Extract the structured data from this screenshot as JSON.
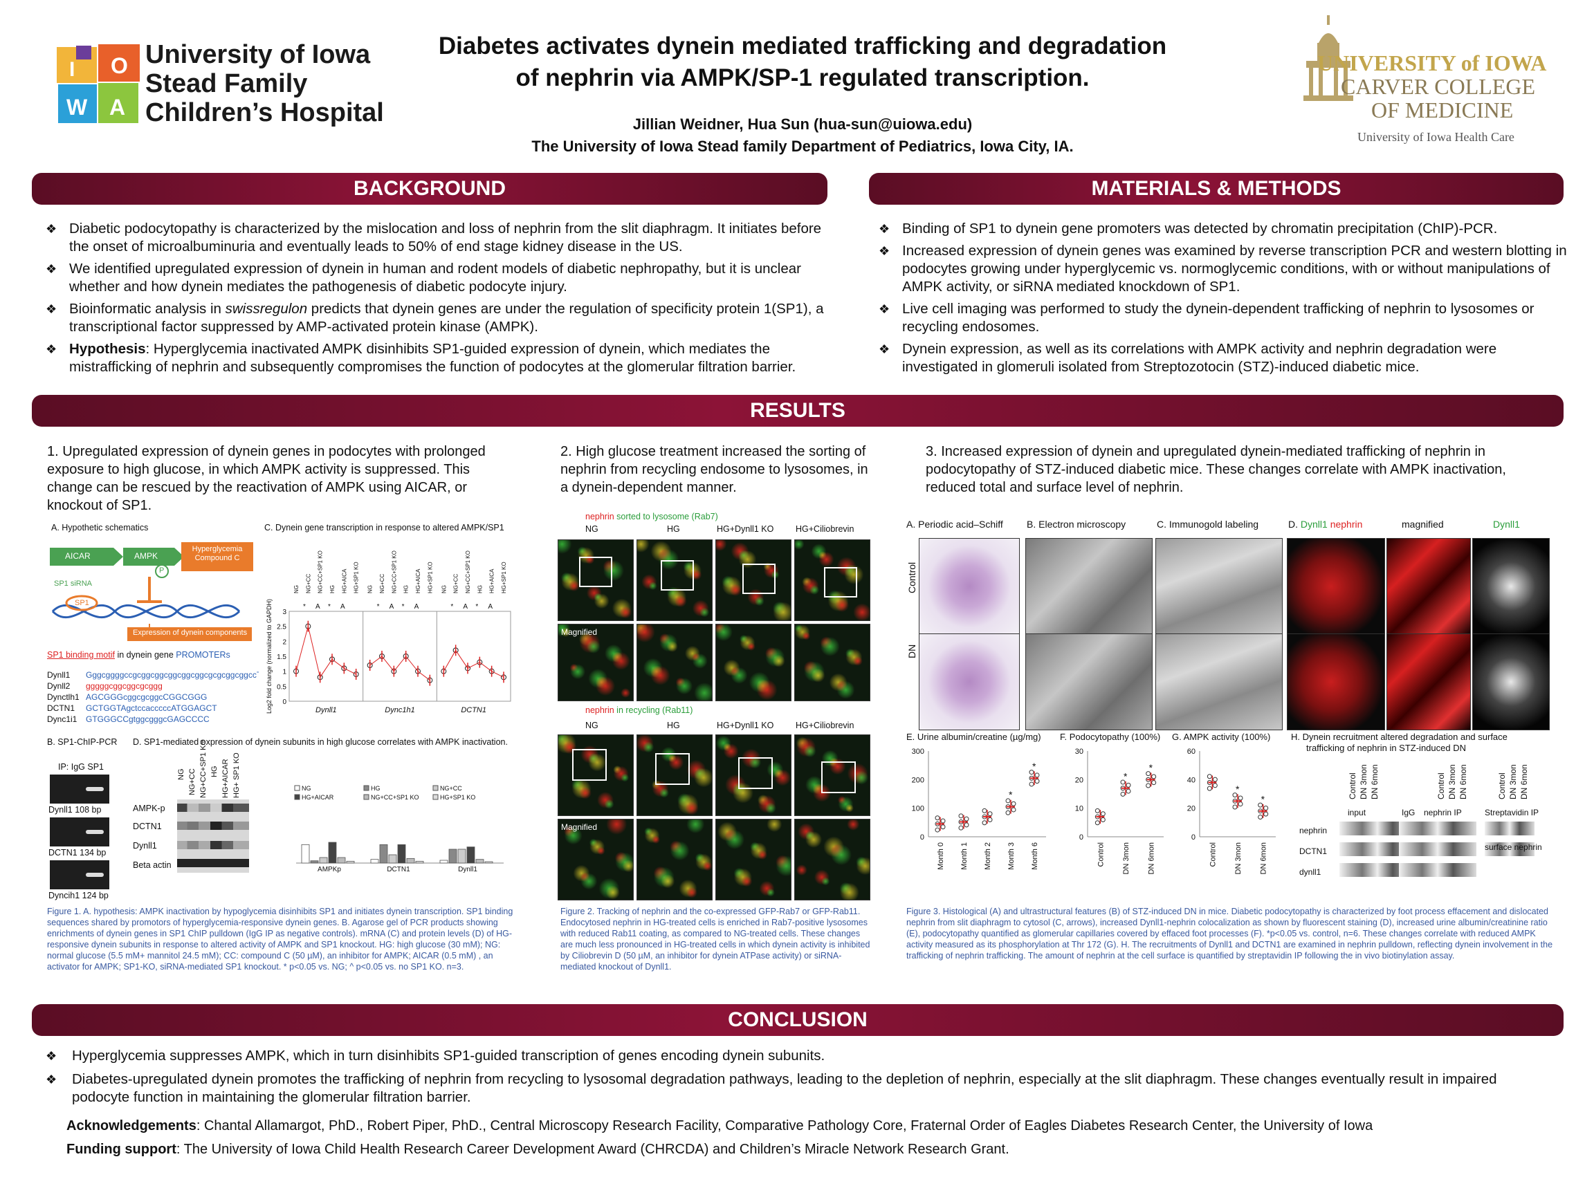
{
  "header": {
    "left_logo_lines": [
      "University of Iowa",
      "Stead Family",
      "Children’s Hospital"
    ],
    "title_line1": "Diabetes activates dynein mediated trafficking and degradation",
    "title_line2": "of nephrin via AMPK/SP-1 regulated transcription.",
    "authors": "Jillian Weidner, Hua Sun (hua-sun@uiowa.edu)",
    "affiliation": "The University of Iowa Stead family Department of Pediatrics, Iowa City, IA.",
    "right_logo_line1": "UNIVERSITY of IOWA",
    "right_logo_line2": "CARVER COLLEGE",
    "right_logo_line3": "OF MEDICINE",
    "right_logo_line4": "University of Iowa Health Care"
  },
  "background": {
    "heading": "BACKGROUND",
    "bullets": [
      "Diabetic podocytopathy is characterized by the mislocation and loss of nephrin from the slit diaphragm.  It initiates before the onset of microalbuminuria and eventually leads to 50% of end stage kidney disease in the US.",
      "We identified upregulated expression of dynein in human and rodent models of diabetic nephropathy, but it is unclear whether and how dynein mediates the pathogenesis of diabetic podocyte injury.",
      "Bioinformatic analysis in swissregulon predicts that dynein genes are under the regulation of specificity protein 1(SP1), a transcriptional factor suppressed by AMP-activated protein kinase (AMPK).",
      "Hyperglycemia inactivated AMPK disinhibits SP1-guided expression of dynein, which mediates the mistrafficking of nephrin and subsequently compromises the function of podocytes at the glomerular filtration barrier."
    ],
    "bullet4_bold": "Hypothesis",
    "bullet3_pre": "Bioinformatic analysis in ",
    "bullet3_italic": "swissregulon",
    "bullet3_post": " predicts that dynein genes are under the regulation of specificity protein 1(SP1), a transcriptional factor suppressed by AMP-activated protein kinase (AMPK).",
    "bullet4_post": ": Hyperglycemia inactivated AMPK disinhibits SP1-guided expression of dynein, which mediates the mistrafficking of nephrin and subsequently compromises the function of podocytes at the glomerular filtration barrier."
  },
  "methods": {
    "heading": "MATERIALS & METHODS",
    "bullets": [
      "Binding of SP1 to dynein gene promoters was detected by chromatin precipitation (ChIP)-PCR.",
      "Increased expression of dynein genes was examined by reverse transcription PCR and western blotting in podocytes growing under hyperglycemic vs. normoglycemic conditions, with or without manipulations of AMPK activity, or siRNA mediated knockdown of SP1.",
      "Live cell imaging was performed to study the dynein-dependent trafficking of nephrin to lysosomes or recycling endosomes.",
      "Dynein expression, as well as its correlations with AMPK activity and nephrin degradation were investigated in glomeruli isolated from Streptozotocin (STZ)-induced diabetic mice."
    ]
  },
  "results": {
    "heading": "RESULTS",
    "s1": "1.     Upregulated expression of dynein genes in podocytes with prolonged exposure to high glucose, in which AMPK activity is suppressed. This change can be rescued by the reactivation of AMPK using AICAR, or knockout of SP1.",
    "s2": "2.     High glucose treatment increased the sorting of nephrin from recycling endosome to lysosomes, in a dynein-dependent manner.",
    "s3": "3.     Increased expression of dynein and upregulated dynein-mediated trafficking of nephrin in podocytopathy of STZ-induced diabetic mice. These changes correlate with AMPK inactivation, reduced total and surface level of nephrin.",
    "fig1": {
      "A": "A. Hypothetic schematics",
      "C": "C. Dynein gene transcription in response to altered AMPK/SP1",
      "aicar": "AICAR",
      "ampk": "AMPK",
      "hyper": "Hyperglycemia Compound C",
      "sp1sirna": "SP1 siRNA",
      "sp1": "SP1",
      "expr": "Expression of dynein components",
      "p": "P",
      "motif_red": "SP1 binding motif",
      "motif_mid": " in dynein gene ",
      "motif_blue": "PROMOTERs",
      "genes": [
        "Dynll1",
        "Dynll2",
        "Dynctlh1",
        "DCTN1",
        "Dync1i1"
      ],
      "seqs": [
        "GggcggggccgcggcggcggcggcggcgcgcggcggccT",
        "gggggcggcggcgcggg",
        "AGCGGGcggcgcggcCGGCGGG",
        "GCTGGTAgctccacccccATGGAGCT",
        "GTGGGCCgtggcgggcGAGCCCC"
      ],
      "ylabel": "Log2 fold change (normalized to GAPDH)",
      "c_groups": [
        "Dynll1",
        "Dync1h1",
        "DCTN1"
      ],
      "c_conds": [
        "NG",
        "NG+CC",
        "NG+CC+SP1 KO",
        "HG",
        "HG+AICA",
        "HG+SP1 KO"
      ],
      "c_sig": [
        "*",
        "A",
        "*",
        "A"
      ],
      "B": "B. SP1-ChIP-PCR",
      "D": "D.   SP1-mediated expression of dynein subunits in high glucose correlates with AMPK inactivation.",
      "ip": "IP: IgG SP1",
      "bands": [
        "Dynll1   108 bp",
        "DCTN1   134 bp",
        "Dyncih1  124 bp"
      ],
      "wb_lanes": [
        "NG",
        "NG+CC",
        "NG+CC+SP1 KO",
        "HG",
        "HG+AICAR",
        "HG+ SP1 KO"
      ],
      "wb_rows": [
        "AMPK-p",
        "DCTN1",
        "Dynll1",
        "Beta actin"
      ],
      "d_legend": [
        "NG",
        "NG+CC",
        "NG+CC+SP1 KO",
        "HG",
        "HG+AICAR",
        "HG+SP1 KO"
      ],
      "d_groups": [
        "AMPKp",
        "DCTN1",
        "Dynll1"
      ],
      "caption": "Figure 1. A. hypothesis: AMPK inactivation by hypoglycemia disinhibits SP1 and initiates dynein transcription. SP1 binding sequences shared by promotors of hyperglycemia-responsive dynein genes. B. Agarose gel of PCR products showing enrichments of dynein genes in SP1 ChIP pulldown (IgG IP as negative controls). mRNA (C) and protein levels (D) of HG-responsive dynein subunits in response to altered activity of AMPK and SP1 knockout. HG: high glucose (30 mM); NG: normal glucose (5.5 mM+ mannitol 24.5 mM); CC: compound C (50 µM), an inhibitor for AMPK; AICAR (0.5 mM) , an activator for AMPK; SP1-KO, siRNA-mediated SP1 knockout.  * p<0.05 vs. NG; ^ p<0.05 vs. no SP1 KO. n=3."
    },
    "fig2": {
      "top_red": "nephrin",
      "top_green": " sorted to lysosome (Rab7)",
      "bot_red": "nephrin",
      "bot_green": " in recycling (Rab11)",
      "cols": [
        "NG",
        "HG",
        "HG+Dynll1 KO",
        "HG+Ciliobrevin"
      ],
      "magnified": "Magnified",
      "caption": "Figure 2.  Tracking of nephrin and the co-expressed GFP-Rab7 or GFP-Rab11. Endocytosed nephrin in HG-treated cells is enriched in Rab7-positive lysosomes with reduced Rab11 coating, as compared to NG-treated cells. These changes are much less pronounced in HG-treated cells in which dynein activity is inhibited by Ciliobrevin D (50 µM, an inhibitor for dynein ATPase activity) or siRNA-mediated knockout of Dynll1."
    },
    "fig3": {
      "heads": [
        "A.   Periodic acid–Schiff",
        "B.   Electron microscopy",
        "C.   Immunogold labeling",
        "D.",
        "Dynll1",
        "nephrin",
        "magnified",
        "Dynll1"
      ],
      "rows": [
        "Control",
        "DN"
      ],
      "nephrin_lbl": "nephrin",
      "E": "E.  Urine albumin/creatine (µg/mg)",
      "F": "F.  Podocytopathy (100%)",
      "G": "G.  AMPK activity (100%)",
      "H1": "H.  Dynein recruitment altered degradation and surface",
      "H2": "trafficking of nephrin in STZ-induced DN",
      "h_lanes": [
        "Control",
        "DN 3mon",
        "DN 6mon"
      ],
      "h_groups": [
        "input",
        "IgG",
        "nephrin IP",
        "Streptavidin IP"
      ],
      "h_rows": [
        "nephrin",
        "DCTN1",
        "dynll1"
      ],
      "surface": "surface nephrin",
      "caption": "Figure 3.  Histological (A) and ultrastructural features (B) of STZ-induced DN in mice. Diabetic podocytopathy is characterized by foot process effacement and dislocated nephrin from slit diaphragm to cytosol (C, arrows), increased Dynll1-nephrin colocalization as shown by fluorescent staining (D), increased urine albumin/creatinine ratio (E), podocytopathy quantified as glomerular capillaries covered by effaced foot processes (F). *p<0.05 vs. control, n=6.  These changes correlate with reduced AMPK activity measured as its phosphorylation at Thr 172 (G). H.  The recruitments of Dynll1 and DCTN1 are examined  in nephrin pulldown, reflecting dynein involvement in the trafficking of nephrin trafficking.  The amount of nephrin at the cell surface is quantified by streptavidin IP following the in vivo biotinylation assay."
    }
  },
  "conclusion": {
    "heading": "CONCLUSION",
    "bullets": [
      "Hyperglycemia suppresses AMPK, which in turn disinhibits SP1-guided transcription of genes encoding dynein subunits.",
      "Diabetes-upregulated dynein promotes the trafficking of nephrin from recycling to lysosomal degradation pathways, leading to the depletion of nephrin, especially at the slit diaphragm. These changes eventually result in impaired podocyte function in maintaining the glomerular filtration barrier."
    ],
    "ack_bold": "Acknowledgements",
    "ack_text": ": Chantal Allamargot,  PhD., Robert Piper, PhD., Central Microscopy Research Facility, Comparative Pathology Core, Fraternal Order of Eagles Diabetes Research Center, the University of Iowa",
    "fund_bold": "Funding support",
    "fund_text": ": The University of Iowa Child Health Research Career Development Award (CHRCDA)  and Children’s Miracle Network Research Grant."
  },
  "chart_data": [
    {
      "type": "scatter",
      "title": "E.  Urine albumin/creatine (µg/mg)",
      "categories": [
        "Month 0",
        "Month 1",
        "Month 2",
        "Month 3",
        "Month 6"
      ],
      "values": [
        45,
        52,
        70,
        105,
        205
      ],
      "ylim": [
        0,
        300
      ],
      "yticks": [
        0,
        100,
        200,
        300
      ],
      "significance": [
        "",
        "",
        "",
        "*",
        "*"
      ]
    },
    {
      "type": "scatter",
      "title": "F.  Podocytopathy (100%)",
      "categories": [
        "Control",
        "DN 3mon",
        "DN 6mon"
      ],
      "values": [
        7,
        17,
        20
      ],
      "ylim": [
        0,
        30
      ],
      "yticks": [
        0,
        10,
        20,
        30
      ],
      "significance": [
        "",
        "*",
        "*"
      ]
    },
    {
      "type": "scatter",
      "title": "G.  AMPK activity (100%)",
      "categories": [
        "Control",
        "DN 3mon",
        "DN 6mon"
      ],
      "values": [
        38,
        25,
        18
      ],
      "ylim": [
        0,
        60
      ],
      "yticks": [
        0,
        20,
        40,
        60
      ],
      "significance": [
        "",
        "*",
        "*"
      ]
    },
    {
      "type": "scatter",
      "title": "C. Dynein gene transcription in response to altered AMPK/SP1",
      "groups": [
        "Dynll1",
        "Dync1h1",
        "DCTN1"
      ],
      "categories": [
        "NG",
        "NG+CC",
        "NG+CC+SP1 KO",
        "HG",
        "HG+AICA",
        "HG+SP1 KO"
      ],
      "series": [
        {
          "name": "Dynll1",
          "values": [
            1.0,
            2.5,
            0.8,
            1.4,
            1.1,
            0.9
          ]
        },
        {
          "name": "Dync1h1",
          "values": [
            1.2,
            1.5,
            1.0,
            1.5,
            1.0,
            0.7
          ]
        },
        {
          "name": "DCTN1",
          "values": [
            1.0,
            1.7,
            1.1,
            1.3,
            1.0,
            0.8
          ]
        }
      ],
      "ylim": [
        0,
        3
      ],
      "yticks": [
        0,
        0.5,
        1,
        1.5,
        2,
        2.5,
        3
      ]
    },
    {
      "type": "bar",
      "title": "D.   SP1-mediated expression of dynein subunits in high glucose correlates with AMPK inactivation.",
      "categories": [
        "AMPKp",
        "DCTN1",
        "Dynll1"
      ],
      "series": [
        {
          "name": "NG",
          "values": [
            40,
            8,
            6
          ]
        },
        {
          "name": "HG",
          "values": [
            5,
            40,
            30
          ]
        },
        {
          "name": "NG+CC",
          "values": [
            12,
            18,
            30
          ]
        },
        {
          "name": "HG+AICAR",
          "values": [
            45,
            40,
            35
          ]
        },
        {
          "name": "NG+CC+SP1 KO",
          "values": [
            12,
            10,
            8
          ]
        },
        {
          "name": "HG+SP1 KO",
          "values": [
            4,
            4,
            3
          ]
        }
      ],
      "ylim": [
        0,
        120
      ]
    }
  ]
}
